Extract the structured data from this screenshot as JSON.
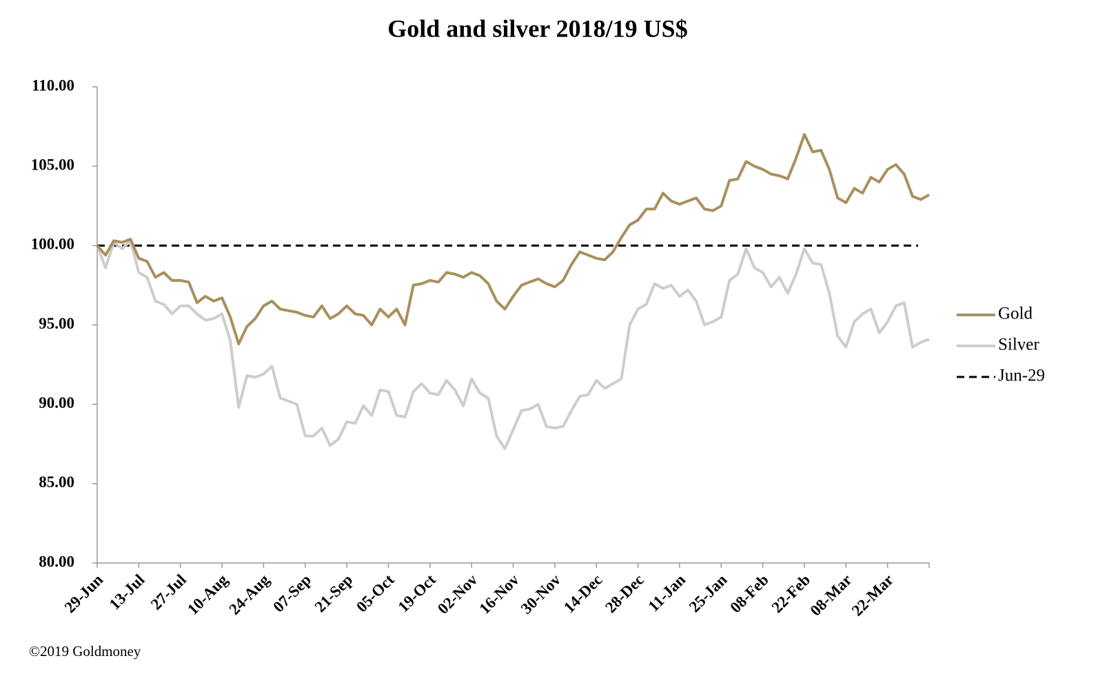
{
  "chart_data": {
    "type": "line",
    "title": "Gold and silver 2018/19  US$",
    "footnote": "©2019 Goldmoney",
    "categories": [
      "29-Jun",
      null,
      null,
      null,
      null,
      "13-Jul",
      null,
      null,
      null,
      null,
      "27-Jul",
      null,
      null,
      null,
      null,
      "10-Aug",
      null,
      null,
      null,
      null,
      "24-Aug",
      null,
      null,
      null,
      null,
      "07-Sep",
      null,
      null,
      null,
      null,
      "21-Sep",
      null,
      null,
      null,
      null,
      "05-Oct",
      null,
      null,
      null,
      null,
      "19-Oct",
      null,
      null,
      null,
      null,
      "02-Nov",
      null,
      null,
      null,
      null,
      "16-Nov",
      null,
      null,
      null,
      null,
      "30-Nov",
      null,
      null,
      null,
      null,
      "14-Dec",
      null,
      null,
      null,
      null,
      "28-Dec",
      null,
      null,
      null,
      null,
      "11-Jan",
      null,
      null,
      null,
      null,
      "25-Jan",
      null,
      null,
      null,
      null,
      "08-Feb",
      null,
      null,
      null,
      null,
      "22-Feb",
      null,
      null,
      null,
      null,
      "08-Mar",
      null,
      null,
      null,
      null,
      "22-Mar",
      null,
      null,
      null,
      null,
      null
    ],
    "series": [
      {
        "name": "Gold",
        "color": "#a8905e",
        "values": [
          100.0,
          99.4,
          100.3,
          100.2,
          100.4,
          99.2,
          99.0,
          98.0,
          98.3,
          97.8,
          97.8,
          97.7,
          96.4,
          96.8,
          96.5,
          96.7,
          95.5,
          93.8,
          94.9,
          95.4,
          96.2,
          96.5,
          96.0,
          95.9,
          95.8,
          95.6,
          95.5,
          96.2,
          95.4,
          95.7,
          96.2,
          95.7,
          95.6,
          95.0,
          96.0,
          95.5,
          96.0,
          95.0,
          97.5,
          97.6,
          97.8,
          97.7,
          98.3,
          98.2,
          98.0,
          98.3,
          98.1,
          97.6,
          96.5,
          96.0,
          96.8,
          97.5,
          97.7,
          97.9,
          97.6,
          97.4,
          97.8,
          98.8,
          99.6,
          99.4,
          99.2,
          99.1,
          99.6,
          100.5,
          101.3,
          101.6,
          102.3,
          102.3,
          103.3,
          102.8,
          102.6,
          102.8,
          103.0,
          102.3,
          102.2,
          102.5,
          104.1,
          104.2,
          105.3,
          105.0,
          104.8,
          104.5,
          104.4,
          104.2,
          105.5,
          107.0,
          105.9,
          106.0,
          104.8,
          103.0,
          102.7,
          103.6,
          103.3,
          104.3,
          104.0,
          104.8,
          105.1,
          104.5,
          103.1,
          102.9,
          103.2
        ]
      },
      {
        "name": "Silver",
        "color": "#cdcdcd",
        "values": [
          100.0,
          98.6,
          100.2,
          99.8,
          100.3,
          98.3,
          98.0,
          96.5,
          96.3,
          95.7,
          96.2,
          96.2,
          95.7,
          95.3,
          95.4,
          95.7,
          94.0,
          89.8,
          91.8,
          91.7,
          91.9,
          92.4,
          90.4,
          90.2,
          90.0,
          88.0,
          88.0,
          88.5,
          87.4,
          87.8,
          88.9,
          88.8,
          89.9,
          89.3,
          90.9,
          90.8,
          89.3,
          89.2,
          90.8,
          91.3,
          90.7,
          90.6,
          91.5,
          90.9,
          89.9,
          91.6,
          90.7,
          90.4,
          88.0,
          87.2,
          88.4,
          89.6,
          89.7,
          90.0,
          88.6,
          88.5,
          88.6,
          89.6,
          90.5,
          90.6,
          91.5,
          91.0,
          91.3,
          91.6,
          95.0,
          96.0,
          96.3,
          97.6,
          97.3,
          97.5,
          96.8,
          97.2,
          96.5,
          95.0,
          95.2,
          95.5,
          97.8,
          98.2,
          99.8,
          98.6,
          98.3,
          97.4,
          98.0,
          97.0,
          98.2,
          99.8,
          98.9,
          98.8,
          97.0,
          94.3,
          93.6,
          95.2,
          95.7,
          96.0,
          94.5,
          95.2,
          96.2,
          96.4,
          93.6,
          93.9,
          94.1
        ]
      }
    ],
    "reference_line": {
      "name": "Jun-29",
      "value": 100,
      "color": "#000000",
      "dashed": true
    },
    "ylim": [
      80,
      110
    ],
    "yticks": [
      {
        "value": 80,
        "label": "80.00"
      },
      {
        "value": 85,
        "label": "85.00"
      },
      {
        "value": 90,
        "label": "90.00"
      },
      {
        "value": 95,
        "label": "95.00"
      },
      {
        "value": 100,
        "label": "100.00"
      },
      {
        "value": 105,
        "label": "105.00"
      },
      {
        "value": 110,
        "label": "110.00"
      }
    ],
    "grid": false,
    "legend": "right"
  }
}
